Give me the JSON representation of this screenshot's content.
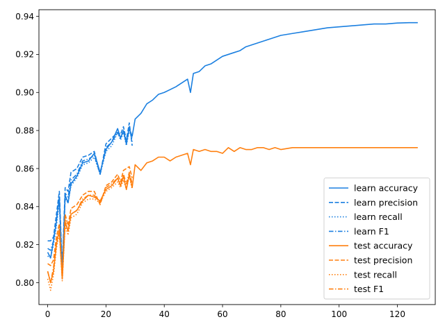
{
  "chart_data": {
    "type": "line",
    "title": "",
    "xlabel": "",
    "ylabel": "",
    "xlim": [
      -3,
      133
    ],
    "ylim": [
      0.7885,
      0.9435
    ],
    "xticks": [
      0,
      20,
      40,
      60,
      80,
      100,
      120
    ],
    "xtick_labels": [
      "0",
      "20",
      "40",
      "60",
      "80",
      "100",
      "120"
    ],
    "yticks": [
      0.8,
      0.82,
      0.84,
      0.86,
      0.88,
      0.9,
      0.92,
      0.94
    ],
    "ytick_labels": [
      "0.80",
      "0.82",
      "0.84",
      "0.86",
      "0.88",
      "0.90",
      "0.92",
      "0.94"
    ],
    "grid": false,
    "legend": "lower-right",
    "colors": {
      "learn": "#1f77b4",
      "learn_display": "#1a7fe0",
      "test": "#ff7f0e"
    },
    "series": [
      {
        "name": "learn accuracy",
        "color": "#1a7fe0",
        "style": "solid",
        "x": [
          0,
          1,
          2,
          3,
          4,
          5,
          6,
          7,
          8,
          10,
          12,
          14,
          16,
          18,
          20,
          22,
          24,
          25,
          26,
          27,
          28,
          29,
          30,
          32,
          34,
          36,
          38,
          40,
          42,
          44,
          46,
          48,
          49,
          50,
          52,
          54,
          56,
          58,
          60,
          62,
          64,
          66,
          68,
          70,
          72,
          74,
          76,
          78,
          80,
          84,
          88,
          92,
          96,
          100,
          104,
          108,
          112,
          116,
          120,
          124,
          127
        ],
        "y": [
          0.816,
          0.813,
          0.822,
          0.832,
          0.845,
          0.803,
          0.846,
          0.842,
          0.852,
          0.856,
          0.863,
          0.864,
          0.868,
          0.858,
          0.87,
          0.874,
          0.881,
          0.876,
          0.88,
          0.873,
          0.881,
          0.877,
          0.886,
          0.889,
          0.894,
          0.896,
          0.899,
          0.9,
          0.9015,
          0.903,
          0.905,
          0.907,
          0.9,
          0.91,
          0.911,
          0.914,
          0.915,
          0.917,
          0.919,
          0.92,
          0.921,
          0.922,
          0.924,
          0.925,
          0.926,
          0.927,
          0.928,
          0.929,
          0.93,
          0.931,
          0.932,
          0.933,
          0.934,
          0.9345,
          0.935,
          0.9355,
          0.936,
          0.936,
          0.9365,
          0.9367,
          0.9367
        ]
      },
      {
        "name": "learn precision",
        "color": "#1a7fe0",
        "style": "dashed",
        "x": [
          0,
          1,
          2,
          3,
          4,
          5,
          6,
          7,
          8,
          10,
          12,
          14,
          16,
          18,
          20,
          22,
          24,
          25,
          26,
          27,
          28,
          29
        ],
        "y": [
          0.822,
          0.822,
          0.824,
          0.836,
          0.848,
          0.808,
          0.85,
          0.848,
          0.858,
          0.86,
          0.866,
          0.867,
          0.869,
          0.857,
          0.873,
          0.876,
          0.879,
          0.878,
          0.882,
          0.875,
          0.884,
          0.872
        ]
      },
      {
        "name": "learn recall",
        "color": "#1a7fe0",
        "style": "dotted",
        "x": [
          0,
          1,
          2,
          3,
          4,
          5,
          6,
          7,
          8,
          10,
          12,
          14,
          16,
          18,
          20,
          22,
          24,
          25,
          26,
          27,
          28,
          29
        ],
        "y": [
          0.814,
          0.813,
          0.82,
          0.83,
          0.842,
          0.804,
          0.844,
          0.842,
          0.851,
          0.855,
          0.862,
          0.863,
          0.866,
          0.857,
          0.869,
          0.872,
          0.879,
          0.875,
          0.879,
          0.872,
          0.88,
          0.876
        ]
      },
      {
        "name": "learn F1",
        "color": "#1a7fe0",
        "style": "dashdot",
        "x": [
          0,
          1,
          2,
          3,
          4,
          5,
          6,
          7,
          8,
          10,
          12,
          14,
          16,
          18,
          20,
          22,
          24,
          25,
          26,
          27,
          28,
          29
        ],
        "y": [
          0.818,
          0.817,
          0.822,
          0.833,
          0.845,
          0.806,
          0.847,
          0.845,
          0.854,
          0.857,
          0.864,
          0.865,
          0.867,
          0.857,
          0.871,
          0.874,
          0.879,
          0.876,
          0.88,
          0.873,
          0.882,
          0.874
        ]
      },
      {
        "name": "test accuracy",
        "color": "#ff7f0e",
        "style": "solid",
        "x": [
          0,
          1,
          2,
          3,
          4,
          5,
          6,
          7,
          8,
          10,
          12,
          14,
          16,
          18,
          20,
          22,
          24,
          25,
          26,
          27,
          28,
          29,
          30,
          32,
          34,
          36,
          38,
          40,
          42,
          44,
          46,
          48,
          49,
          50,
          52,
          54,
          56,
          58,
          60,
          62,
          64,
          66,
          68,
          70,
          72,
          74,
          76,
          78,
          80,
          84,
          88,
          92,
          96,
          100,
          104,
          108,
          112,
          116,
          120,
          124,
          127
        ],
        "y": [
          0.806,
          0.8,
          0.806,
          0.82,
          0.828,
          0.802,
          0.832,
          0.827,
          0.836,
          0.838,
          0.843,
          0.846,
          0.845,
          0.843,
          0.849,
          0.851,
          0.855,
          0.851,
          0.856,
          0.849,
          0.857,
          0.85,
          0.862,
          0.859,
          0.863,
          0.864,
          0.866,
          0.866,
          0.864,
          0.866,
          0.867,
          0.868,
          0.862,
          0.87,
          0.869,
          0.87,
          0.869,
          0.869,
          0.868,
          0.871,
          0.869,
          0.871,
          0.87,
          0.87,
          0.871,
          0.871,
          0.87,
          0.871,
          0.87,
          0.871,
          0.871,
          0.871,
          0.871,
          0.871,
          0.871,
          0.871,
          0.871,
          0.871,
          0.871,
          0.871,
          0.871
        ]
      },
      {
        "name": "test precision",
        "color": "#ff7f0e",
        "style": "dashed",
        "x": [
          0,
          1,
          2,
          3,
          4,
          5,
          6,
          7,
          8,
          10,
          12,
          14,
          16,
          18,
          20,
          22,
          24,
          25,
          26,
          27,
          28,
          29
        ],
        "y": [
          0.81,
          0.809,
          0.812,
          0.824,
          0.831,
          0.804,
          0.836,
          0.83,
          0.839,
          0.841,
          0.846,
          0.848,
          0.848,
          0.841,
          0.851,
          0.853,
          0.857,
          0.853,
          0.859,
          0.86,
          0.861,
          0.855
        ]
      },
      {
        "name": "test recall",
        "color": "#ff7f0e",
        "style": "dotted",
        "x": [
          0,
          1,
          2,
          3,
          4,
          5,
          6,
          7,
          8,
          10,
          12,
          14,
          16,
          18,
          20,
          22,
          24,
          25,
          26,
          27,
          28,
          29
        ],
        "y": [
          0.802,
          0.796,
          0.804,
          0.818,
          0.826,
          0.801,
          0.83,
          0.825,
          0.834,
          0.836,
          0.842,
          0.844,
          0.844,
          0.842,
          0.848,
          0.85,
          0.853,
          0.85,
          0.854,
          0.849,
          0.856,
          0.849
        ]
      },
      {
        "name": "test F1",
        "color": "#ff7f0e",
        "style": "dashdot",
        "x": [
          0,
          1,
          2,
          3,
          4,
          5,
          6,
          7,
          8,
          10,
          12,
          14,
          16,
          18,
          20,
          22,
          24,
          25,
          26,
          27,
          28,
          29
        ],
        "y": [
          0.806,
          0.8,
          0.808,
          0.821,
          0.828,
          0.802,
          0.833,
          0.827,
          0.836,
          0.838,
          0.844,
          0.846,
          0.846,
          0.842,
          0.85,
          0.852,
          0.855,
          0.851,
          0.857,
          0.852,
          0.858,
          0.852
        ]
      }
    ]
  }
}
